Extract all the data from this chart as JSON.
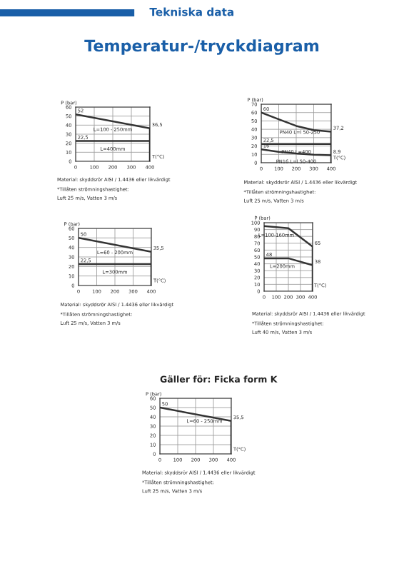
{
  "chart_data": [
    {
      "type": "other",
      "title": "Temperatur-/tryckdiagram",
      "subtitle": "Tekniska data"
    },
    {
      "type": "line",
      "xlabel": "T(°C)",
      "ylabel": "P (bar)",
      "xlim": [
        0,
        400
      ],
      "ylim": [
        0,
        60
      ],
      "xticks": [
        0,
        100,
        200,
        300,
        400
      ],
      "yticks": [
        0,
        10,
        20,
        30,
        40,
        50,
        60
      ],
      "grid": true,
      "series": [
        {
          "color": "#333333",
          "x": [
            0,
            400,
            400
          ],
          "values": [
            52,
            36.5,
            0
          ]
        },
        {
          "color": "#333333",
          "x": [
            0,
            400
          ],
          "values": [
            22.5,
            22.5
          ]
        }
      ],
      "annotations": [
        {
          "text": "52",
          "x": 0,
          "y": 52
        },
        {
          "text": "L=100 - 250mm",
          "x": 200,
          "y": 44
        },
        {
          "text": "36,5",
          "x": 400,
          "y": 36.5
        },
        {
          "text": "22,5",
          "x": 0,
          "y": 22.5
        },
        {
          "text": "L=400mm",
          "x": 200,
          "y": 22.5
        },
        "Material: skyddsrör AISI / 1.4436 eller likvärdigt",
        "*Tillåten strömningshastighet:",
        "Luft 25 m/s, Vatten 3 m/s"
      ]
    },
    {
      "type": "line",
      "xlabel": "T(°C)",
      "ylabel": "P (bar)",
      "xlim": [
        0,
        400
      ],
      "ylim": [
        0,
        70
      ],
      "xticks": [
        0,
        100,
        200,
        300,
        400
      ],
      "yticks": [
        0,
        10,
        20,
        30,
        40,
        50,
        60,
        70
      ],
      "grid": true,
      "series": [
        {
          "color": "#333333",
          "x": [
            0,
            100,
            200,
            300,
            400,
            400
          ],
          "values": [
            60,
            52,
            44,
            39,
            37.2,
            0
          ]
        },
        {
          "color": "#333333",
          "x": [
            0,
            400
          ],
          "values": [
            22.5,
            22.5
          ]
        },
        {
          "color": "#333333",
          "x": [
            0,
            100,
            200,
            300,
            400
          ],
          "values": [
            16,
            13,
            11,
            9.5,
            8.9
          ]
        }
      ],
      "annotations": [
        {
          "text": "60",
          "x": 0,
          "y": 60
        },
        {
          "text": "PN40 L=l 50-250",
          "x": 220,
          "y": 46
        },
        {
          "text": "37,2",
          "x": 400,
          "y": 37.2
        },
        {
          "text": "22,5",
          "x": 0,
          "y": 22.5
        },
        {
          "text": "PN40 L=400",
          "x": 200,
          "y": 22.5
        },
        {
          "text": "16",
          "x": 0,
          "y": 16
        },
        {
          "text": "PN16 L=l 50-400",
          "x": 200,
          "y": 11
        },
        {
          "text": "8,9",
          "x": 400,
          "y": 8.9
        },
        "Material: skyddsrör AISI / 1.4436 eller likvärdigt",
        "*Tillåten strömningshastighet:",
        "Luft 25 m/s, Vatten 3 m/s"
      ]
    },
    {
      "type": "line",
      "xlabel": "T(°C)",
      "ylabel": "P (bar)",
      "xlim": [
        0,
        400
      ],
      "ylim": [
        0,
        60
      ],
      "xticks": [
        0,
        100,
        200,
        300,
        400
      ],
      "yticks": [
        0,
        10,
        20,
        30,
        40,
        50,
        60
      ],
      "grid": true,
      "series": [
        {
          "color": "#333333",
          "x": [
            0,
            400,
            400
          ],
          "values": [
            50,
            35.5,
            0
          ]
        },
        {
          "color": "#333333",
          "x": [
            0,
            400
          ],
          "values": [
            22.5,
            22.5
          ]
        }
      ],
      "annotations": [
        {
          "text": "50",
          "x": 0,
          "y": 50
        },
        {
          "text": "L=60 - 200mm",
          "x": 200,
          "y": 43
        },
        {
          "text": "35,5",
          "x": 400,
          "y": 35.5
        },
        {
          "text": "22,5",
          "x": 0,
          "y": 22.5
        },
        {
          "text": "L=300mm",
          "x": 200,
          "y": 22.5
        },
        "Material: skyddsrör AISI / 1.4436 eller likvärdigt",
        "*Tillåten strömningshastighet:",
        "Luft 25 m/s, Vatten 3 m/s"
      ]
    },
    {
      "type": "line",
      "xlabel": "T(°C)",
      "ylabel": "P (bar)",
      "xlim": [
        0,
        400
      ],
      "ylim": [
        0,
        100
      ],
      "xticks": [
        0,
        100,
        200,
        300,
        400
      ],
      "yticks": [
        0,
        10,
        20,
        30,
        40,
        50,
        60,
        70,
        80,
        90,
        100
      ],
      "grid": true,
      "series": [
        {
          "color": "#333333",
          "x": [
            0,
            200,
            400,
            400
          ],
          "values": [
            95,
            92,
            65,
            38
          ]
        },
        {
          "color": "#333333",
          "x": [
            0,
            200,
            400,
            400
          ],
          "values": [
            48,
            48,
            38,
            0
          ]
        }
      ],
      "annotations": [
        {
          "text": "L=100-160mm",
          "x": 100,
          "y": 93.5
        },
        {
          "text": "65",
          "x": 400,
          "y": 65
        },
        {
          "text": "48",
          "x": 0,
          "y": 48
        },
        {
          "text": "L=200mm",
          "x": 150,
          "y": 48
        },
        {
          "text": "38",
          "x": 400,
          "y": 38
        },
        "Material: skyddsrör AISI / 1.4436 eller likvärdigt",
        "*Tillåten strömningshastighet:",
        "Luft 40 m/s, Vatten 3 m/s"
      ]
    },
    {
      "type": "line",
      "title": "Gäller för: Ficka form K",
      "xlabel": "T(°C)",
      "ylabel": "P (bar)",
      "xlim": [
        0,
        400
      ],
      "ylim": [
        0,
        60
      ],
      "xticks": [
        0,
        100,
        200,
        300,
        400
      ],
      "yticks": [
        0,
        10,
        20,
        30,
        40,
        50,
        60
      ],
      "grid": true,
      "series": [
        {
          "color": "#333333",
          "x": [
            0,
            400,
            400
          ],
          "values": [
            50,
            35.5,
            0
          ]
        }
      ],
      "annotations": [
        {
          "text": "50",
          "x": 0,
          "y": 50
        },
        {
          "text": "L=60 - 250mm",
          "x": 250,
          "y": 44
        },
        {
          "text": "35,5",
          "x": 400,
          "y": 35.5
        },
        "Material: skyddsrör AISI / 1.4436 eller likvärdigt",
        "*Tillåten strömningshastighet:",
        "Luft 25 m/s, Vatten 3 m/s"
      ]
    }
  ]
}
